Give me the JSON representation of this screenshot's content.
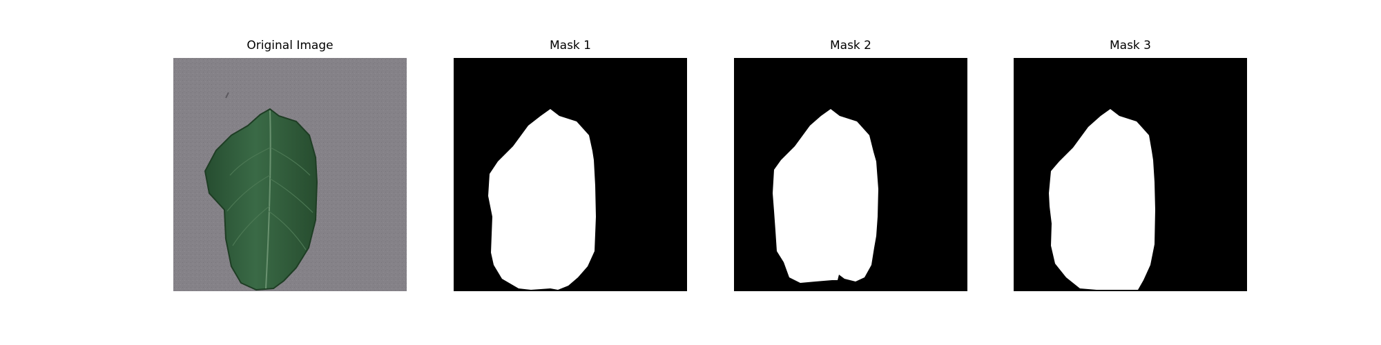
{
  "figure": {
    "panels": [
      {
        "title": "Original Image",
        "kind": "photo"
      },
      {
        "title": "Mask 1",
        "kind": "mask"
      },
      {
        "title": "Mask 2",
        "kind": "mask"
      },
      {
        "title": "Mask 3",
        "kind": "mask"
      }
    ]
  },
  "colors": {
    "background": "#ffffff",
    "surface": "#858288",
    "leaf": "#2e5a38",
    "leaf_dark": "#1f4228",
    "leaf_vein": "#5f8a64",
    "mask_bg": "#000000",
    "mask_fg": "#ffffff"
  },
  "icons": {
    "photo": "leaf-photo",
    "mask": "segmentation-mask"
  }
}
